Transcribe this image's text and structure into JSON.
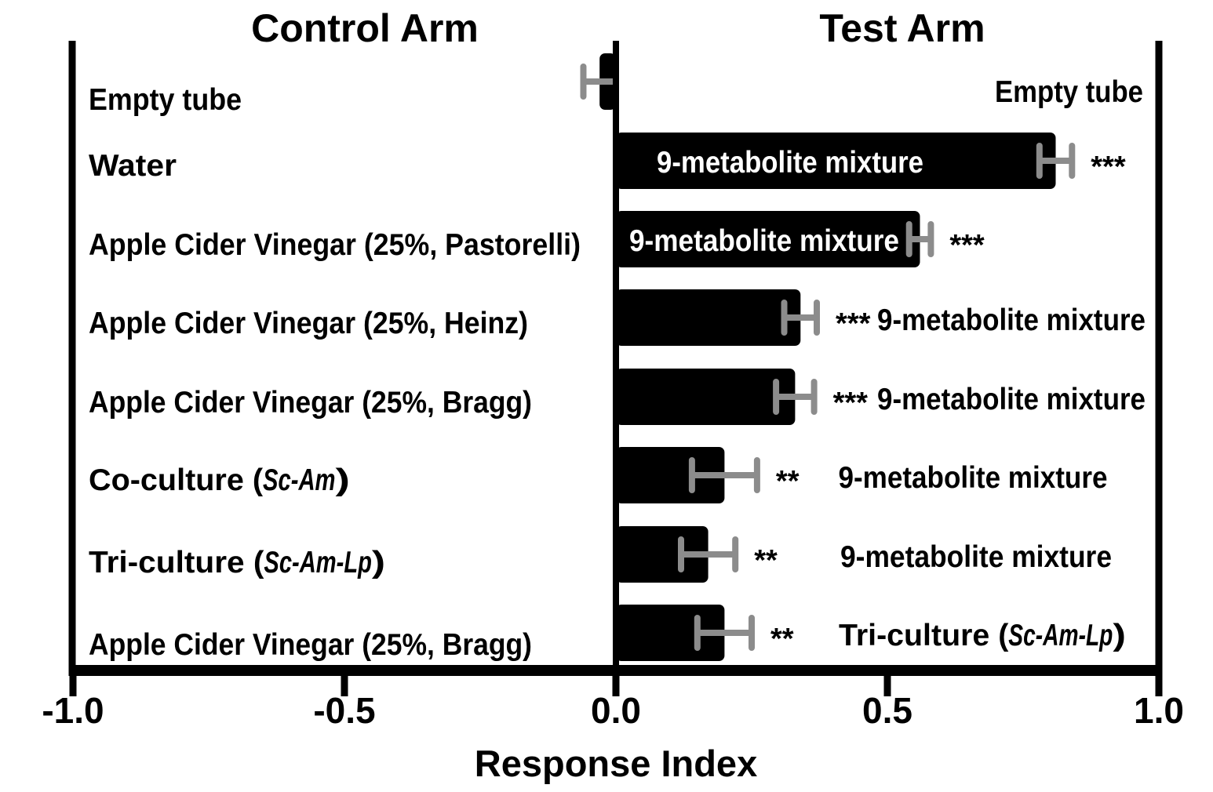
{
  "chart_data": {
    "type": "bar",
    "orientation": "horizontal",
    "control_arm_title": "Control Arm",
    "test_arm_title": "Test Arm",
    "xlabel": "Response Index",
    "xlim": [
      -1.0,
      1.0
    ],
    "x_ticks": [
      {
        "value": -1.0,
        "label": "-1.0"
      },
      {
        "value": -0.5,
        "label": "-0.5"
      },
      {
        "value": 0.0,
        "label": "0.0"
      },
      {
        "value": 0.5,
        "label": "0.5"
      },
      {
        "value": 1.0,
        "label": "1.0"
      }
    ],
    "bar_color": "#000000",
    "error_bar_color": "#8c8c8c",
    "bar_label_inside_color": "#ffffff",
    "rows": [
      {
        "control_label": [
          {
            "t": "Empty tube"
          }
        ],
        "test_label": [
          {
            "t": "Empty tube"
          }
        ],
        "value": -0.03,
        "error": 0.03,
        "significance": ""
      },
      {
        "control_label": [
          {
            "t": "Water"
          }
        ],
        "test_label": [
          {
            "t": "9-metabolite mixture"
          }
        ],
        "value": 0.81,
        "error": 0.03,
        "significance": "***"
      },
      {
        "control_label": [
          {
            "t": "Apple Cider Vinegar (25%, Pastorelli)"
          }
        ],
        "test_label": [
          {
            "t": "9-metabolite mixture"
          }
        ],
        "value": 0.56,
        "error": 0.02,
        "significance": "***"
      },
      {
        "control_label": [
          {
            "t": "Apple Cider Vinegar (25%, Heinz)"
          }
        ],
        "test_label": [
          {
            "t": "9-metabolite mixture"
          }
        ],
        "value": 0.34,
        "error": 0.03,
        "significance": "***"
      },
      {
        "control_label": [
          {
            "t": "Apple Cider Vinegar (25%, Bragg)"
          }
        ],
        "test_label": [
          {
            "t": "9-metabolite mixture"
          }
        ],
        "value": 0.33,
        "error": 0.035,
        "significance": "***"
      },
      {
        "control_label": [
          {
            "t": "Co-culture ("
          },
          {
            "t": "Sc-Am",
            "i": true
          },
          {
            "t": ")"
          }
        ],
        "test_label": [
          {
            "t": "9-metabolite mixture"
          }
        ],
        "value": 0.2,
        "error": 0.06,
        "significance": "**"
      },
      {
        "control_label": [
          {
            "t": "Tri-culture ("
          },
          {
            "t": "Sc-Am-Lp",
            "i": true
          },
          {
            "t": ")"
          }
        ],
        "test_label": [
          {
            "t": "9-metabolite mixture"
          }
        ],
        "value": 0.17,
        "error": 0.05,
        "significance": "**"
      },
      {
        "control_label": [
          {
            "t": "Apple Cider Vinegar (25%, Bragg)"
          }
        ],
        "test_label": [
          {
            "t": "Tri-culture ("
          },
          {
            "t": "Sc-Am-Lp",
            "i": true
          },
          {
            "t": ")"
          }
        ],
        "value": 0.2,
        "error": 0.05,
        "significance": "**"
      }
    ]
  }
}
